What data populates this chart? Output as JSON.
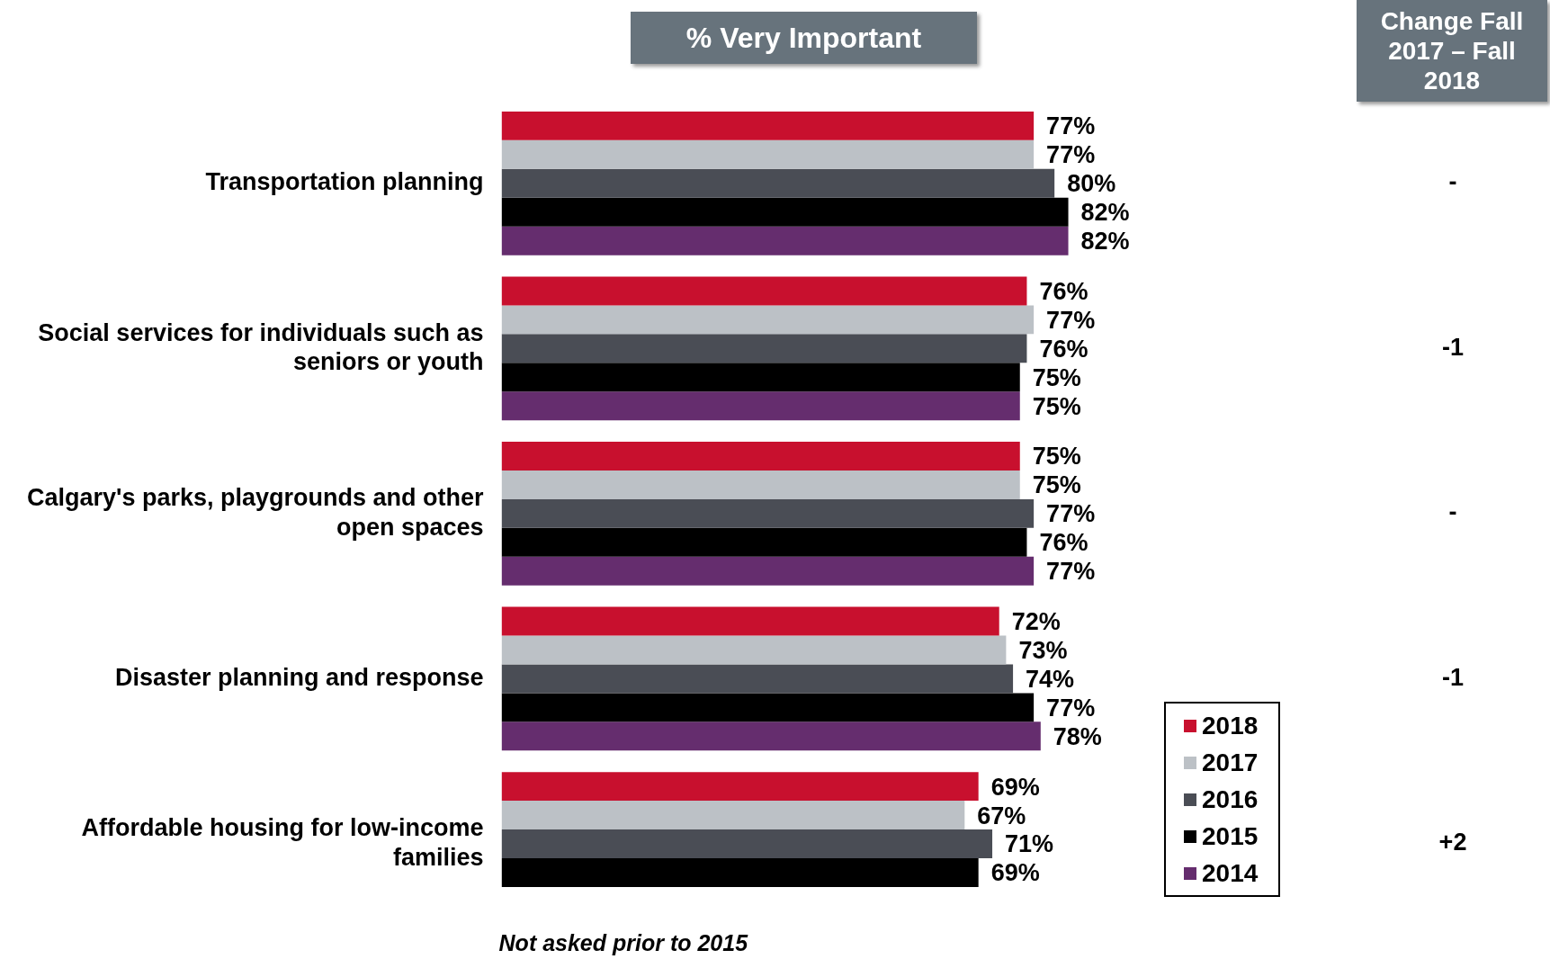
{
  "chart_data": {
    "type": "bar",
    "orientation": "horizontal",
    "title": "% Very Important",
    "categories": [
      "Transportation planning",
      "Social services for individuals such as seniors or youth",
      "Calgary's parks, playgrounds and other open spaces",
      "Disaster planning and response",
      "Affordable housing for low-income families"
    ],
    "series": [
      {
        "name": "2018",
        "color": "#c8102e",
        "values": [
          77,
          76,
          75,
          72,
          69
        ],
        "value_labels": [
          "77%",
          "76%",
          "75%",
          "72%",
          "69%"
        ]
      },
      {
        "name": "2017",
        "color": "#bcc1c6",
        "values": [
          77,
          77,
          75,
          73,
          67
        ],
        "value_labels": [
          "77%",
          "77%",
          "75%",
          "73%",
          "67%"
        ]
      },
      {
        "name": "2016",
        "color": "#4a4d55",
        "values": [
          80,
          76,
          77,
          74,
          71
        ],
        "value_labels": [
          "80%",
          "76%",
          "77%",
          "74%",
          "71%"
        ]
      },
      {
        "name": "2015",
        "color": "#000000",
        "values": [
          82,
          75,
          76,
          77,
          69
        ],
        "value_labels": [
          "82%",
          "75%",
          "76%",
          "77%",
          "69%"
        ]
      },
      {
        "name": "2014",
        "color": "#652d6e",
        "values": [
          82,
          75,
          77,
          78,
          null
        ],
        "value_labels": [
          "82%",
          "75%",
          "77%",
          "78%",
          null
        ]
      }
    ],
    "tick_labels": "y",
    "legend": "right",
    "annotations": [
      "Change Fall 2017 – Fall 2018",
      "-",
      "-1",
      "-",
      "-1",
      "+2",
      "Not asked prior to 2015"
    ]
  }
}
